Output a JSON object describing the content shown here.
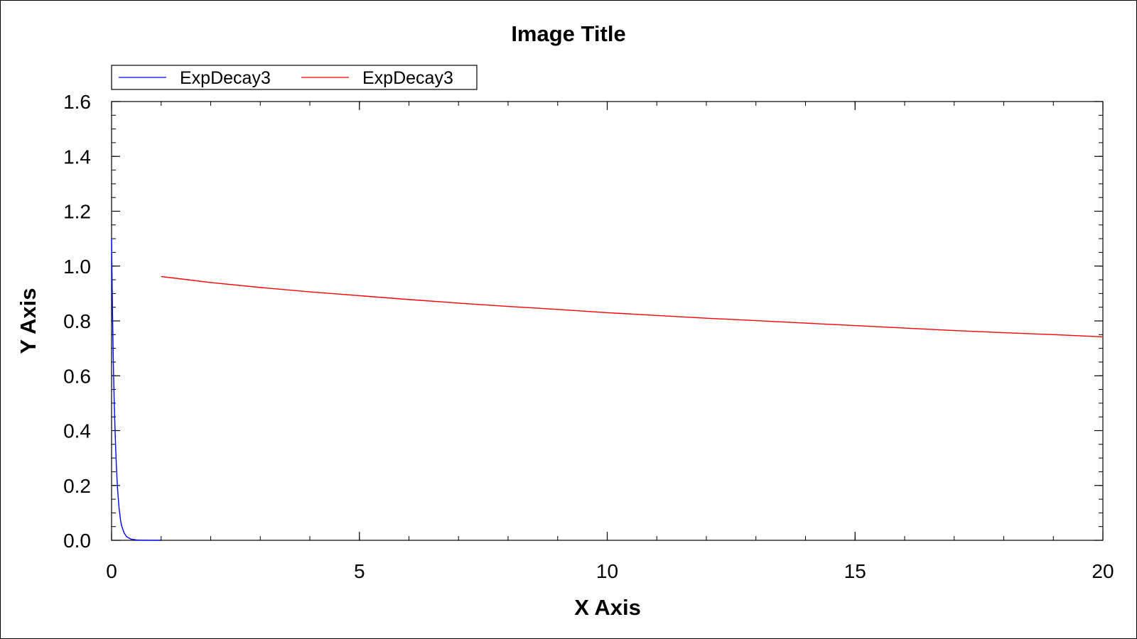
{
  "chart_data": {
    "type": "line",
    "title": "Image Title",
    "xlabel": "X Axis",
    "ylabel": "Y Axis",
    "xlim": [
      0,
      20
    ],
    "ylim": [
      0,
      1.6
    ],
    "x_ticks": [
      "0",
      "5",
      "10",
      "15",
      "20"
    ],
    "y_ticks": [
      "0.0",
      "0.2",
      "0.4",
      "0.6",
      "0.8",
      "1.0",
      "1.2",
      "1.4",
      "1.6"
    ],
    "grid": false,
    "legend_position": "top-left",
    "series": [
      {
        "name": "ExpDecay3",
        "color": "#0000ff",
        "x": [
          0,
          0.01,
          0.02,
          0.03,
          0.04,
          0.05,
          0.06,
          0.08,
          0.1,
          0.12,
          0.15,
          0.18,
          0.2,
          0.25,
          0.3,
          0.35,
          0.4,
          0.5,
          0.6,
          0.7,
          0.8,
          1.0
        ],
        "y": [
          1.1,
          0.95,
          0.82,
          0.71,
          0.61,
          0.53,
          0.46,
          0.35,
          0.26,
          0.19,
          0.12,
          0.075,
          0.055,
          0.028,
          0.014,
          0.008,
          0.004,
          0.0015,
          0.0006,
          0.0003,
          0.0001,
          0.0
        ]
      },
      {
        "name": "ExpDecay3",
        "color": "#ff0000",
        "x": [
          1,
          2,
          3,
          4,
          5,
          6,
          7,
          8,
          9,
          10,
          11,
          12,
          13,
          14,
          15,
          16,
          17,
          18,
          19,
          20
        ],
        "y": [
          0.962,
          0.94,
          0.922,
          0.906,
          0.892,
          0.878,
          0.865,
          0.853,
          0.842,
          0.83,
          0.82,
          0.81,
          0.801,
          0.792,
          0.783,
          0.774,
          0.765,
          0.757,
          0.75,
          0.742
        ]
      }
    ]
  }
}
